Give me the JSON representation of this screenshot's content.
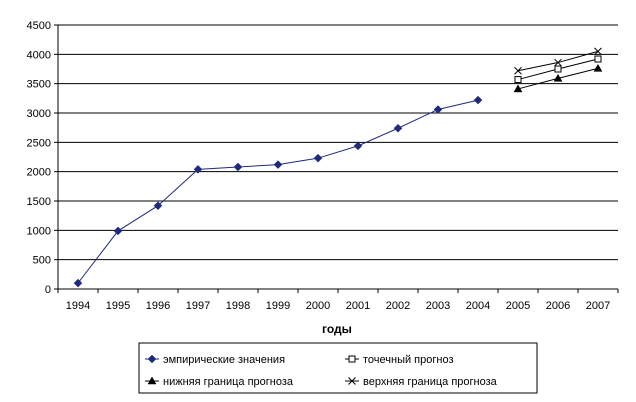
{
  "chart_data": {
    "type": "line",
    "xlabel": "годы",
    "ylabel": "",
    "ylim": [
      0,
      4500
    ],
    "yticks": [
      0,
      500,
      1000,
      1500,
      2000,
      2500,
      3000,
      3500,
      4000,
      4500
    ],
    "categories": [
      "1994",
      "1995",
      "1996",
      "1997",
      "1998",
      "1999",
      "2000",
      "2001",
      "2002",
      "2003",
      "2004",
      "2005",
      "2006",
      "2007"
    ],
    "grid": "horizontal",
    "legend_position": "bottom",
    "series": [
      {
        "name": "эмпирические значения",
        "marker": "diamond",
        "color": "#1f2a7a",
        "x": [
          "1994",
          "1995",
          "1996",
          "1997",
          "1998",
          "1999",
          "2000",
          "2001",
          "2002",
          "2003",
          "2004"
        ],
        "values": [
          100,
          990,
          1420,
          2040,
          2080,
          2120,
          2230,
          2440,
          2740,
          3060,
          3220
        ]
      },
      {
        "name": "точечный прогноз",
        "marker": "square",
        "color": "#000000",
        "x": [
          "2005",
          "2006",
          "2007"
        ],
        "values": [
          3570,
          3750,
          3920
        ]
      },
      {
        "name": "нижняя граница прогноза",
        "marker": "triangle",
        "color": "#000000",
        "x": [
          "2005",
          "2006",
          "2007"
        ],
        "values": [
          3410,
          3590,
          3760
        ]
      },
      {
        "name": "верхняя граница прогноза",
        "marker": "cross",
        "color": "#000000",
        "x": [
          "2005",
          "2006",
          "2007"
        ],
        "values": [
          3720,
          3860,
          4050
        ]
      }
    ]
  }
}
